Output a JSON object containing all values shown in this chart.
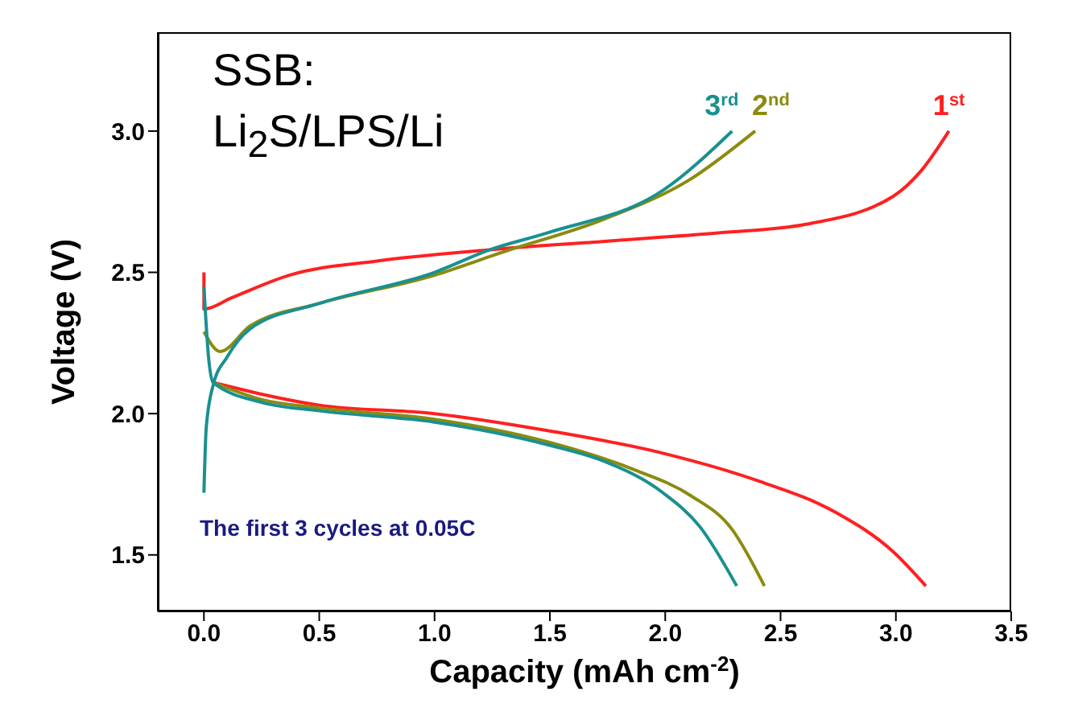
{
  "chart_data": {
    "type": "line",
    "xlabel": "Capacity (mAh cm$^{-2}$)",
    "ylabel": "Voltage (V)",
    "xlim": [
      -0.2,
      3.5
    ],
    "xticks": [
      {
        "value": 0,
        "label": "0.0"
      },
      0.5,
      {
        "value": 1,
        "label": "1.0"
      },
      1.5,
      {
        "value": 2,
        "label": "2.0"
      },
      2.5,
      {
        "value": 3,
        "label": "3.0"
      },
      3.5
    ],
    "ylim": [
      1.3,
      3.35
    ],
    "yticks": [
      1.5,
      {
        "value": 2,
        "label": "2.0"
      },
      2.5,
      {
        "value": 3,
        "label": "3.0"
      }
    ],
    "annotations": [
      "SSB:",
      "Li$_{2}$S/LPS/Li",
      "The first 3 cycles at 0.05C"
    ],
    "series": [
      {
        "color": "#ff2020",
        "x": [
          0.04,
          0.5,
          1.0,
          1.49,
          1.99,
          2.41,
          2.74,
          2.99,
          3.13
        ],
        "values": [
          2.11,
          2.03,
          2.0,
          1.94,
          1.86,
          1.76,
          1.65,
          1.51,
          1.39
        ]
      },
      {
        "name": "1$^{st}$",
        "color": "#ff2020",
        "x": [
          0,
          0,
          0.12,
          0.37,
          0.75,
          1.24,
          1.74,
          2.24,
          2.61,
          2.99,
          3.11,
          3.23
        ],
        "values": [
          2.5,
          2.37,
          2.41,
          2.49,
          2.54,
          2.58,
          2.61,
          2.64,
          2.67,
          2.77,
          2.86,
          3.0
        ]
      },
      {
        "color": "#8b8b10",
        "x": [
          0.04,
          0.25,
          0.5,
          1.0,
          1.49,
          1.87,
          2.11,
          2.29,
          2.43
        ],
        "values": [
          2.11,
          2.05,
          2.02,
          1.98,
          1.9,
          1.8,
          1.71,
          1.59,
          1.39
        ]
      },
      {
        "name": "2$^{nd}$",
        "color": "#8b8b10",
        "x": [
          0,
          0.07,
          0.2,
          0.5,
          1.0,
          1.29,
          1.74,
          2.11,
          2.39
        ],
        "values": [
          2.29,
          2.22,
          2.31,
          2.39,
          2.49,
          2.57,
          2.69,
          2.83,
          3.0
        ]
      },
      {
        "color": "#1a9090",
        "x": [
          0,
          0.02,
          0.04,
          0.25,
          0.5,
          1.0,
          1.49,
          1.74,
          1.99,
          2.15,
          2.31
        ],
        "values": [
          2.45,
          2.2,
          2.11,
          2.04,
          2.01,
          1.97,
          1.89,
          1.83,
          1.72,
          1.6,
          1.39
        ]
      },
      {
        "name": "3$^{rd}$",
        "color": "#1a9090",
        "x": [
          0,
          0.01,
          0.04,
          0.1,
          0.2,
          0.5,
          1.0,
          1.24,
          1.49,
          1.99,
          2.29
        ],
        "values": [
          1.72,
          1.95,
          2.1,
          2.2,
          2.3,
          2.39,
          2.5,
          2.58,
          2.64,
          2.79,
          3.0
        ]
      }
    ]
  }
}
